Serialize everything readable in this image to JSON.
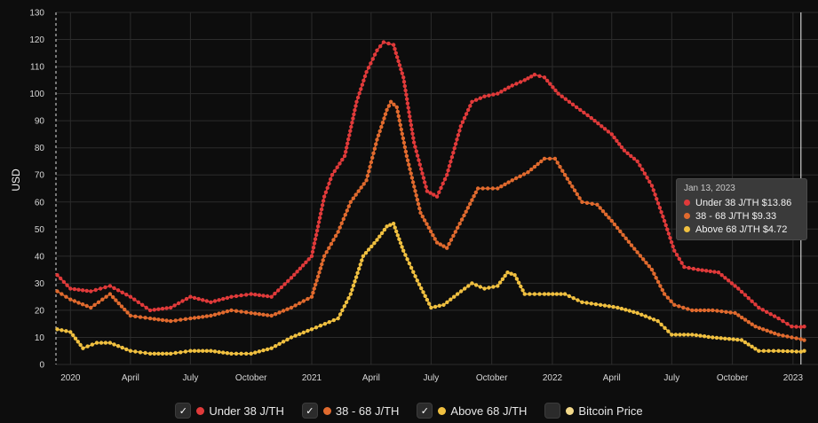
{
  "chart_data": {
    "type": "line",
    "ylabel": "USD",
    "ylim": [
      0,
      130
    ],
    "yticks": [
      "0",
      "10",
      "20",
      "30",
      "40",
      "50",
      "60",
      "70",
      "80",
      "90",
      "100",
      "110",
      "120",
      "130"
    ],
    "xlim": [
      "2019-12-10",
      "2023-01-20"
    ],
    "xticks": [
      {
        "label": "2020",
        "date": "2020-01-01"
      },
      {
        "label": "April",
        "date": "2020-04-01"
      },
      {
        "label": "July",
        "date": "2020-07-01"
      },
      {
        "label": "October",
        "date": "2020-10-01"
      },
      {
        "label": "2021",
        "date": "2021-01-01"
      },
      {
        "label": "April",
        "date": "2021-04-01"
      },
      {
        "label": "July",
        "date": "2021-07-01"
      },
      {
        "label": "October",
        "date": "2021-10-01"
      },
      {
        "label": "2022",
        "date": "2022-01-01"
      },
      {
        "label": "April",
        "date": "2022-04-01"
      },
      {
        "label": "July",
        "date": "2022-07-01"
      },
      {
        "label": "October",
        "date": "2022-10-01"
      },
      {
        "label": "2023",
        "date": "2023-01-01"
      }
    ],
    "grid": true,
    "series": [
      {
        "name": "Under 38 J/TH",
        "color": "#e03a3a",
        "points": [
          [
            "2019-12-12",
            33
          ],
          [
            "2020-01-01",
            28
          ],
          [
            "2020-02-01",
            27
          ],
          [
            "2020-03-01",
            29
          ],
          [
            "2020-04-01",
            25
          ],
          [
            "2020-05-01",
            20
          ],
          [
            "2020-06-01",
            21
          ],
          [
            "2020-07-01",
            25
          ],
          [
            "2020-08-01",
            23
          ],
          [
            "2020-09-01",
            25
          ],
          [
            "2020-10-01",
            26
          ],
          [
            "2020-11-01",
            25
          ],
          [
            "2020-12-01",
            32
          ],
          [
            "2021-01-01",
            40
          ],
          [
            "2021-01-20",
            62
          ],
          [
            "2021-02-01",
            70
          ],
          [
            "2021-02-20",
            77
          ],
          [
            "2021-03-10",
            97
          ],
          [
            "2021-03-25",
            108
          ],
          [
            "2021-04-10",
            116
          ],
          [
            "2021-04-20",
            119
          ],
          [
            "2021-05-05",
            118
          ],
          [
            "2021-05-20",
            106
          ],
          [
            "2021-06-05",
            82
          ],
          [
            "2021-06-25",
            64
          ],
          [
            "2021-07-10",
            62
          ],
          [
            "2021-07-25",
            70
          ],
          [
            "2021-08-15",
            88
          ],
          [
            "2021-09-01",
            97
          ],
          [
            "2021-09-20",
            99
          ],
          [
            "2021-10-10",
            100
          ],
          [
            "2021-11-01",
            103
          ],
          [
            "2021-11-20",
            105
          ],
          [
            "2021-12-05",
            107
          ],
          [
            "2021-12-20",
            106
          ],
          [
            "2022-01-10",
            100
          ],
          [
            "2022-02-01",
            96
          ],
          [
            "2022-03-01",
            91
          ],
          [
            "2022-04-01",
            85
          ],
          [
            "2022-04-20",
            79
          ],
          [
            "2022-05-10",
            75
          ],
          [
            "2022-06-01",
            66
          ],
          [
            "2022-06-20",
            53
          ],
          [
            "2022-07-05",
            42
          ],
          [
            "2022-07-20",
            36
          ],
          [
            "2022-08-10",
            35
          ],
          [
            "2022-09-10",
            34
          ],
          [
            "2022-10-10",
            28
          ],
          [
            "2022-11-10",
            21
          ],
          [
            "2022-12-10",
            17
          ],
          [
            "2022-12-30",
            14
          ],
          [
            "2023-01-13",
            13.86
          ],
          [
            "2023-01-18",
            14
          ]
        ]
      },
      {
        "name": "38 - 68 J/TH",
        "color": "#e06a2e",
        "points": [
          [
            "2019-12-12",
            27
          ],
          [
            "2020-01-01",
            24
          ],
          [
            "2020-02-01",
            21
          ],
          [
            "2020-03-01",
            26
          ],
          [
            "2020-04-01",
            18
          ],
          [
            "2020-05-01",
            17
          ],
          [
            "2020-06-01",
            16
          ],
          [
            "2020-07-01",
            17
          ],
          [
            "2020-08-01",
            18
          ],
          [
            "2020-09-01",
            20
          ],
          [
            "2020-10-01",
            19
          ],
          [
            "2020-11-01",
            18
          ],
          [
            "2020-12-01",
            21
          ],
          [
            "2021-01-01",
            25
          ],
          [
            "2021-01-20",
            40
          ],
          [
            "2021-02-10",
            49
          ],
          [
            "2021-03-01",
            60
          ],
          [
            "2021-03-25",
            68
          ],
          [
            "2021-04-10",
            83
          ],
          [
            "2021-04-25",
            94
          ],
          [
            "2021-05-01",
            97
          ],
          [
            "2021-05-10",
            95
          ],
          [
            "2021-05-25",
            77
          ],
          [
            "2021-06-15",
            56
          ],
          [
            "2021-07-10",
            45
          ],
          [
            "2021-07-25",
            43
          ],
          [
            "2021-08-20",
            55
          ],
          [
            "2021-09-10",
            65
          ],
          [
            "2021-10-10",
            65
          ],
          [
            "2021-11-01",
            68
          ],
          [
            "2021-11-25",
            71
          ],
          [
            "2021-12-20",
            76
          ],
          [
            "2022-01-05",
            76
          ],
          [
            "2022-01-20",
            70
          ],
          [
            "2022-02-15",
            60
          ],
          [
            "2022-03-10",
            59
          ],
          [
            "2022-04-01",
            53
          ],
          [
            "2022-05-01",
            44
          ],
          [
            "2022-06-01",
            35
          ],
          [
            "2022-06-20",
            26
          ],
          [
            "2022-07-05",
            22
          ],
          [
            "2022-08-01",
            20
          ],
          [
            "2022-09-01",
            20
          ],
          [
            "2022-10-05",
            19
          ],
          [
            "2022-11-05",
            14
          ],
          [
            "2022-12-10",
            11
          ],
          [
            "2022-12-30",
            10
          ],
          [
            "2023-01-13",
            9.33
          ],
          [
            "2023-01-18",
            9
          ]
        ]
      },
      {
        "name": "Above 68 J/TH",
        "color": "#f0c040",
        "points": [
          [
            "2019-12-12",
            13
          ],
          [
            "2020-01-01",
            12
          ],
          [
            "2020-01-20",
            6
          ],
          [
            "2020-02-10",
            8
          ],
          [
            "2020-03-01",
            8
          ],
          [
            "2020-04-01",
            5
          ],
          [
            "2020-05-01",
            4
          ],
          [
            "2020-06-01",
            4
          ],
          [
            "2020-07-01",
            5
          ],
          [
            "2020-08-01",
            5
          ],
          [
            "2020-09-01",
            4
          ],
          [
            "2020-10-01",
            4
          ],
          [
            "2020-11-01",
            6
          ],
          [
            "2020-12-01",
            10
          ],
          [
            "2021-01-01",
            13
          ],
          [
            "2021-02-10",
            17
          ],
          [
            "2021-03-01",
            26
          ],
          [
            "2021-03-20",
            40
          ],
          [
            "2021-04-10",
            46
          ],
          [
            "2021-04-25",
            51
          ],
          [
            "2021-05-05",
            52
          ],
          [
            "2021-05-20",
            42
          ],
          [
            "2021-06-10",
            31
          ],
          [
            "2021-07-01",
            21
          ],
          [
            "2021-07-20",
            22
          ],
          [
            "2021-08-10",
            26
          ],
          [
            "2021-09-01",
            30
          ],
          [
            "2021-09-20",
            28
          ],
          [
            "2021-10-10",
            29
          ],
          [
            "2021-10-25",
            34
          ],
          [
            "2021-11-05",
            33
          ],
          [
            "2021-11-20",
            26
          ],
          [
            "2021-12-20",
            26
          ],
          [
            "2022-01-20",
            26
          ],
          [
            "2022-02-15",
            23
          ],
          [
            "2022-03-15",
            22
          ],
          [
            "2022-04-10",
            21
          ],
          [
            "2022-05-10",
            19
          ],
          [
            "2022-06-10",
            16
          ],
          [
            "2022-07-01",
            11
          ],
          [
            "2022-08-01",
            11
          ],
          [
            "2022-09-01",
            10
          ],
          [
            "2022-10-15",
            9
          ],
          [
            "2022-11-10",
            5
          ],
          [
            "2022-12-10",
            5
          ],
          [
            "2023-01-13",
            4.72
          ],
          [
            "2023-01-18",
            5
          ]
        ]
      }
    ]
  },
  "tooltip": {
    "date": "Jan 13, 2023",
    "rows": [
      {
        "text": "Under 38 J/TH $13.86",
        "color": "#e03a3a"
      },
      {
        "text": "38 - 68 J/TH $9.33",
        "color": "#e06a2e"
      },
      {
        "text": "Above 68 J/TH $4.72",
        "color": "#f0c040"
      }
    ]
  },
  "legend": [
    {
      "label": "Under 38 J/TH",
      "color": "#e03a3a",
      "checked": true
    },
    {
      "label": "38 - 68 J/TH",
      "color": "#e06a2e",
      "checked": true
    },
    {
      "label": "Above 68 J/TH",
      "color": "#f0c040",
      "checked": true
    },
    {
      "label": "Bitcoin Price",
      "color": "#f3d98a",
      "checked": false
    }
  ],
  "check_mark": "✓"
}
